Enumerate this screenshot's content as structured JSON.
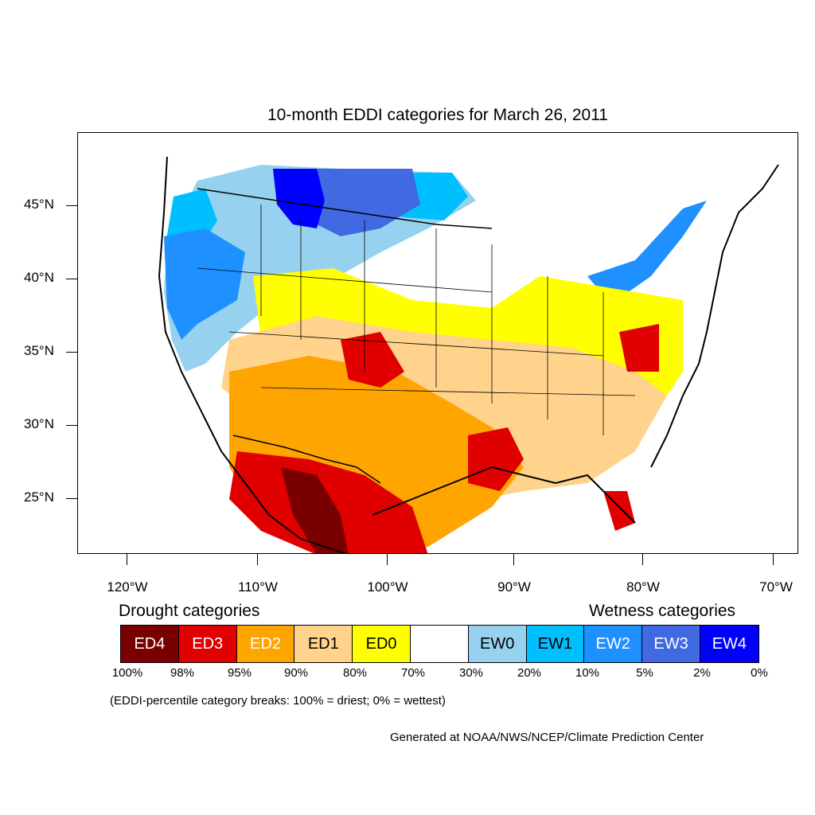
{
  "title": "10-month EDDI categories for March 26, 2011",
  "lat_labels": [
    "45°N",
    "40°N",
    "35°N",
    "30°N",
    "25°N"
  ],
  "lon_labels": [
    "120°W",
    "110°W",
    "100°W",
    "90°W",
    "80°W",
    "70°W"
  ],
  "legend": {
    "drought_title": "Drought categories",
    "wetness_title": "Wetness categories",
    "categories": [
      {
        "label": "ED4",
        "color": "#7a0000",
        "text_color": "#ffffff"
      },
      {
        "label": "ED3",
        "color": "#e00000",
        "text_color": "#ffffff"
      },
      {
        "label": "ED2",
        "color": "#ffa500",
        "text_color": "#ffffff"
      },
      {
        "label": "ED1",
        "color": "#ffd38c",
        "text_color": "#000000"
      },
      {
        "label": "ED0",
        "color": "#ffff00",
        "text_color": "#000000"
      },
      {
        "label": "",
        "color": "#ffffff",
        "text_color": "#000000"
      },
      {
        "label": "EW0",
        "color": "#96d2f0",
        "text_color": "#000000"
      },
      {
        "label": "EW1",
        "color": "#00bfff",
        "text_color": "#000000"
      },
      {
        "label": "EW2",
        "color": "#1e90ff",
        "text_color": "#ffffff"
      },
      {
        "label": "EW3",
        "color": "#4169e1",
        "text_color": "#ffffff"
      },
      {
        "label": "EW4",
        "color": "#0000ff",
        "text_color": "#ffffff"
      }
    ],
    "percentiles": [
      "100%",
      "98%",
      "95%",
      "90%",
      "80%",
      "70%",
      "30%",
      "20%",
      "10%",
      "5%",
      "2%",
      "0%"
    ]
  },
  "note": "(EDDI-percentile category breaks: 100% = driest; 0% = wettest)",
  "credit": "Generated at NOAA/NWS/NCEP/Climate Prediction Center",
  "colors": {
    "ED4": "#7a0000",
    "ED3": "#e00000",
    "ED2": "#ffa500",
    "ED1": "#ffd38c",
    "ED0": "#ffff00",
    "EW0": "#96d2f0",
    "EW1": "#00bfff",
    "EW2": "#1e90ff",
    "EW3": "#4169e1",
    "EW4": "#0000ff"
  }
}
